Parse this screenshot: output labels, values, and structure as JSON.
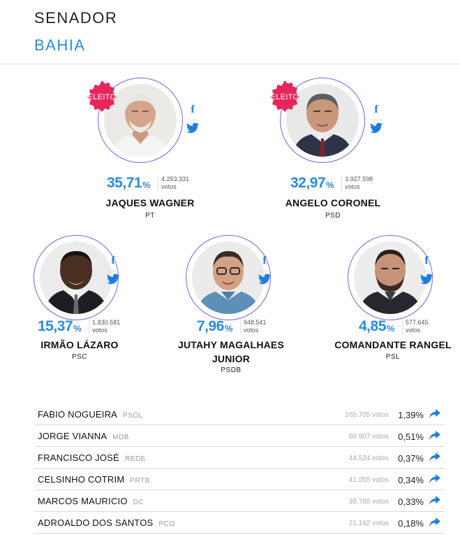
{
  "header": {
    "title": "SENADOR",
    "subtitle": "BAHIA"
  },
  "colors": {
    "accent": "#2a8be0",
    "badge": "#e8265c",
    "ring": "#6a6ad8"
  },
  "candidates": [
    {
      "name": "JAQUES WAGNER",
      "party": "PT",
      "pct": "35,71",
      "pct_symbol": "%",
      "votes_number": "4.253.331",
      "votes_label": "votos",
      "badge": "ELEITO",
      "facebook_icon": "facebook-icon",
      "twitter_icon": "twitter-icon"
    },
    {
      "name": "ANGELO CORONEL",
      "party": "PSD",
      "pct": "32,97",
      "pct_symbol": "%",
      "votes_number": "3.927.598",
      "votes_label": "votos",
      "badge": "ELEITO",
      "facebook_icon": "facebook-icon",
      "twitter_icon": "twitter-icon"
    },
    {
      "name": "IRMÃO LÁZARO",
      "party": "PSC",
      "pct": "15,37",
      "pct_symbol": "%",
      "votes_number": "1.830.581",
      "votes_label": "votos",
      "facebook_icon": "facebook-icon",
      "twitter_icon": "twitter-icon"
    },
    {
      "name_line1": "JUTAHY MAGALHAES",
      "name_line2": "JUNIOR",
      "party": "PSDB",
      "pct": "7,96",
      "pct_symbol": "%",
      "votes_number": "948.541",
      "votes_label": "votos",
      "facebook_icon": "facebook-icon",
      "twitter_icon": "twitter-icon"
    },
    {
      "name": "COMANDANTE RANGEL",
      "party": "PSL",
      "pct": "4,85",
      "pct_symbol": "%",
      "votes_number": "577.645",
      "votes_label": "votos",
      "facebook_icon": "facebook-icon",
      "twitter_icon": "twitter-icon"
    }
  ],
  "others": [
    {
      "name": "FABIO NOGUEIRA",
      "party": "PSOL",
      "votes": "165.705 votos",
      "pct": "1,39%"
    },
    {
      "name": "JORGE VIANNA",
      "party": "MDB",
      "votes": "60.907 votos",
      "pct": "0,51%"
    },
    {
      "name": "FRANCISCO JOSÉ",
      "party": "REDE",
      "votes": "44.524 votos",
      "pct": "0,37%"
    },
    {
      "name": "CELSINHO COTRIM",
      "party": "PRTB",
      "votes": "41.055 votos",
      "pct": "0,34%"
    },
    {
      "name": "MARCOS MAURICIO",
      "party": "DC",
      "votes": "39.780 votos",
      "pct": "0,33%"
    },
    {
      "name": "ADROALDO DOS SANTOS",
      "party": "PCO",
      "votes": "21.182 votos",
      "pct": "0,18%"
    }
  ]
}
